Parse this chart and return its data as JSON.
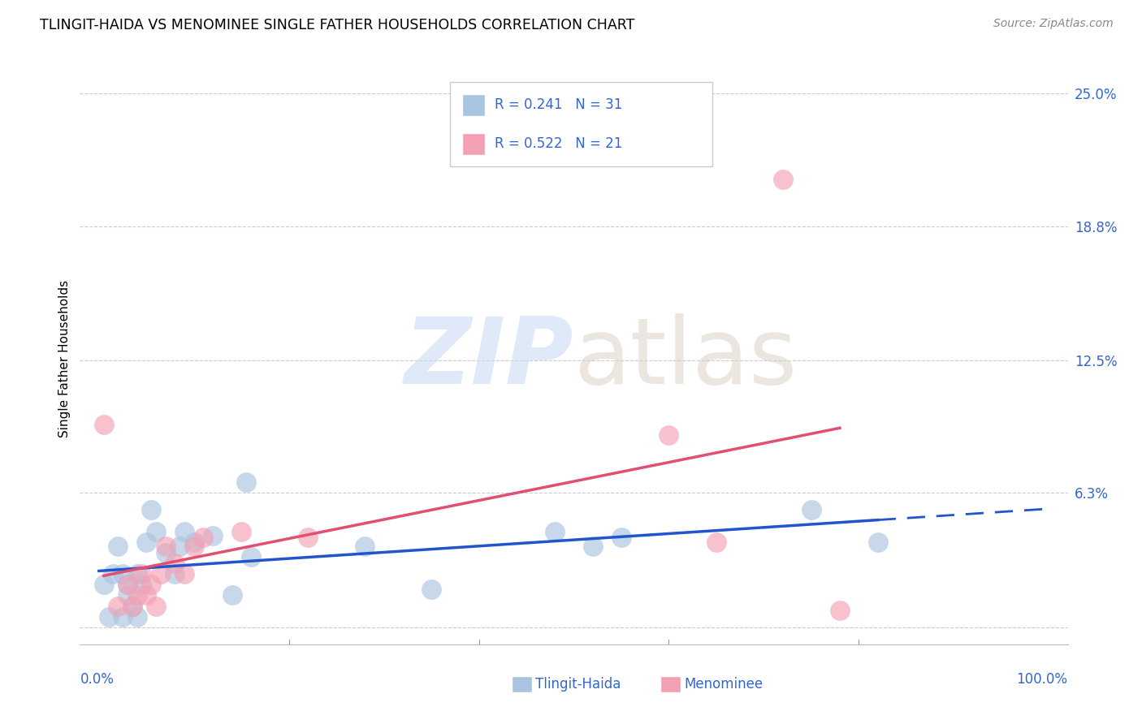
{
  "title": "TLINGIT-HAIDA VS MENOMINEE SINGLE FATHER HOUSEHOLDS CORRELATION CHART",
  "source": "Source: ZipAtlas.com",
  "ylabel": "Single Father Households",
  "tlingit_color": "#a8c4e0",
  "menominee_color": "#f4a0b4",
  "trendline_blue": "#2255cc",
  "trendline_pink": "#e05070",
  "xlim": [
    0.0,
    1.0
  ],
  "ylim": [
    0.0,
    0.25
  ],
  "ytick_vals": [
    0.0,
    0.063,
    0.125,
    0.188,
    0.25
  ],
  "ytick_labels": [
    "",
    "6.3%",
    "12.5%",
    "18.8%",
    "25.0%"
  ],
  "tlingit_x": [
    0.005,
    0.01,
    0.015,
    0.02,
    0.025,
    0.025,
    0.03,
    0.03,
    0.035,
    0.04,
    0.04,
    0.045,
    0.05,
    0.055,
    0.06,
    0.07,
    0.08,
    0.085,
    0.09,
    0.1,
    0.12,
    0.14,
    0.155,
    0.16,
    0.28,
    0.35,
    0.48,
    0.52,
    0.55,
    0.75,
    0.82
  ],
  "tlingit_y": [
    0.02,
    0.005,
    0.025,
    0.038,
    0.005,
    0.025,
    0.015,
    0.02,
    0.01,
    0.005,
    0.025,
    0.02,
    0.04,
    0.055,
    0.045,
    0.035,
    0.025,
    0.038,
    0.045,
    0.04,
    0.043,
    0.015,
    0.068,
    0.033,
    0.038,
    0.018,
    0.045,
    0.038,
    0.042,
    0.055,
    0.04
  ],
  "menominee_x": [
    0.005,
    0.02,
    0.03,
    0.035,
    0.04,
    0.045,
    0.05,
    0.055,
    0.06,
    0.065,
    0.07,
    0.08,
    0.09,
    0.1,
    0.11,
    0.15,
    0.22,
    0.6,
    0.65,
    0.72,
    0.78
  ],
  "menominee_y": [
    0.095,
    0.01,
    0.02,
    0.01,
    0.015,
    0.025,
    0.015,
    0.02,
    0.01,
    0.025,
    0.038,
    0.03,
    0.025,
    0.038,
    0.042,
    0.045,
    0.042,
    0.09,
    0.04,
    0.21,
    0.008
  ],
  "legend_r1": "R = 0.241   N = 31",
  "legend_r2": "R = 0.522   N = 21"
}
